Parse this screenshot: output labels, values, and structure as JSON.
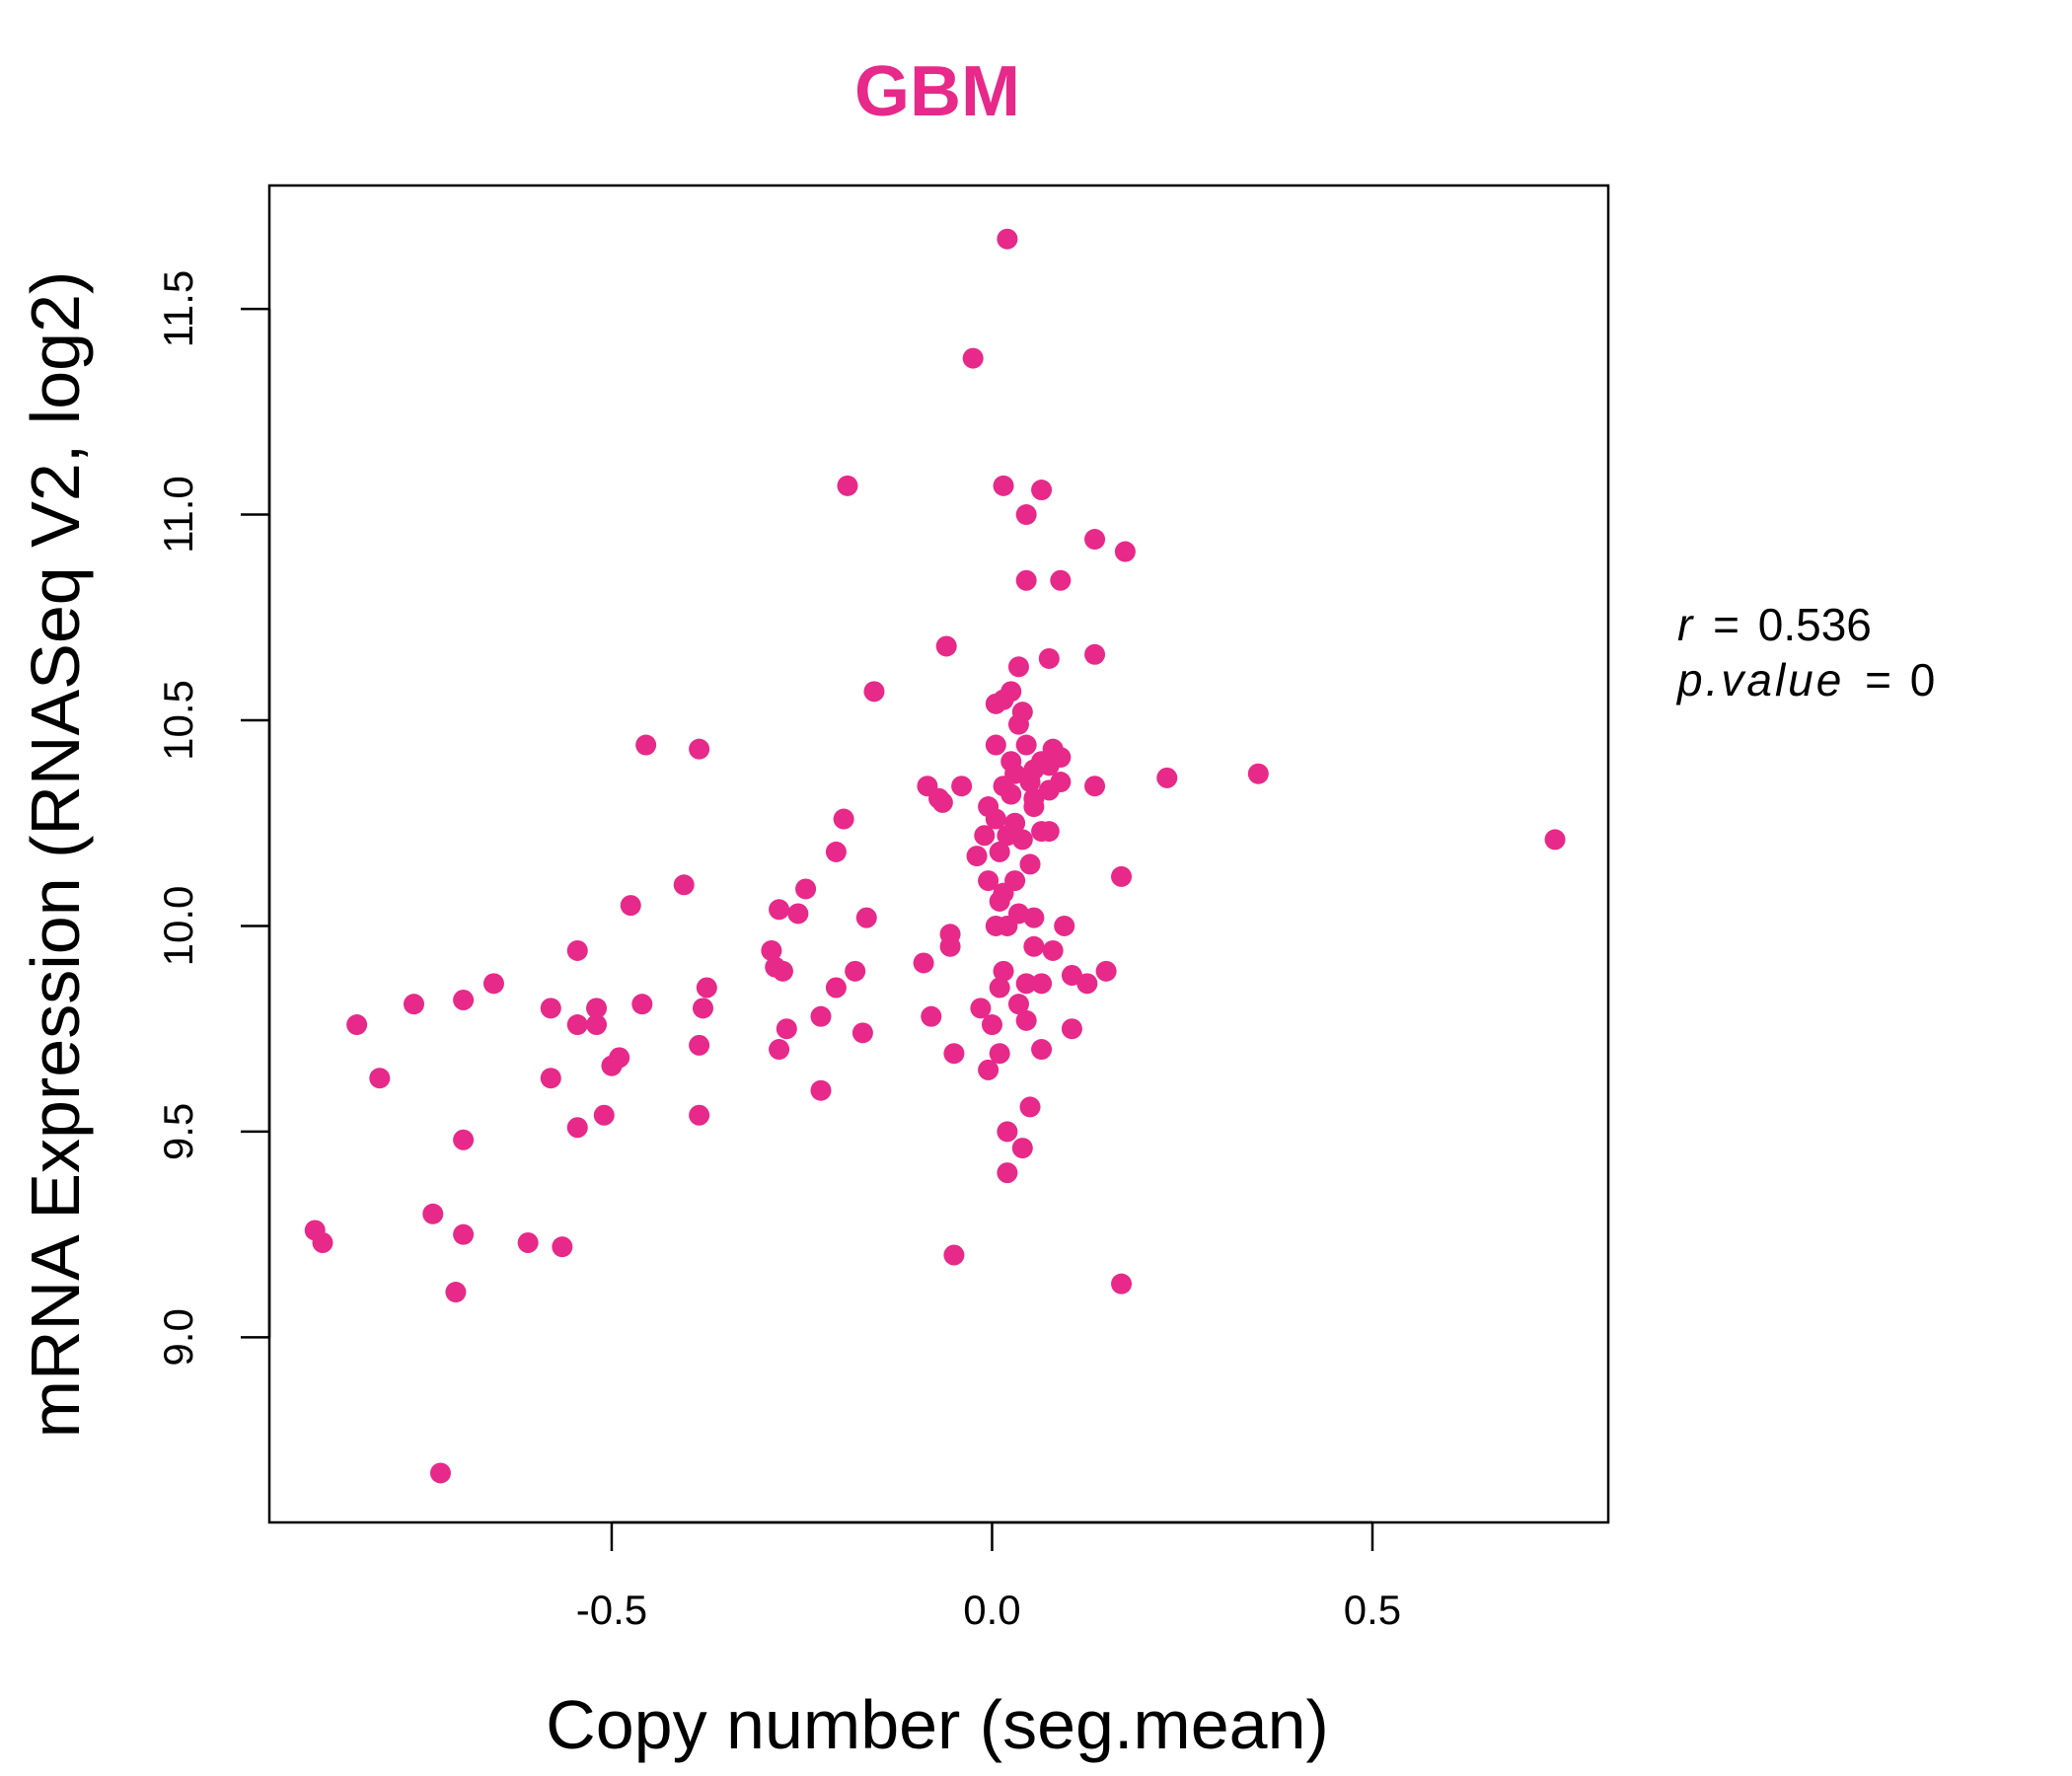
{
  "chart_data": {
    "type": "scatter",
    "title": "GBM",
    "xlabel": "Copy number (seg.mean)",
    "ylabel": "mRNA Expression (RNASeq V2, log2)",
    "xlim": [
      -0.95,
      0.81
    ],
    "ylim": [
      8.55,
      11.8
    ],
    "x_ticks": [
      -0.5,
      0.0,
      0.5
    ],
    "x_tick_labels": [
      "-0.5",
      "0.0",
      "0.5"
    ],
    "y_ticks": [
      9.0,
      9.5,
      10.0,
      10.5,
      11.0,
      11.5
    ],
    "y_tick_labels": [
      "9.0",
      "9.5",
      "10.0",
      "10.5",
      "11.0",
      "11.5"
    ],
    "point_color": "#E7298A",
    "grid": false,
    "stats": {
      "r_label": "r",
      "r_value": "0.536",
      "p_label": "p.value",
      "p_value": "0"
    },
    "points": [
      [
        0.02,
        11.67
      ],
      [
        -0.025,
        11.38
      ],
      [
        -0.19,
        11.07
      ],
      [
        0.015,
        11.07
      ],
      [
        0.065,
        11.06
      ],
      [
        0.045,
        11.0
      ],
      [
        0.135,
        10.94
      ],
      [
        0.175,
        10.91
      ],
      [
        0.045,
        10.84
      ],
      [
        0.09,
        10.84
      ],
      [
        -0.06,
        10.68
      ],
      [
        0.135,
        10.66
      ],
      [
        0.075,
        10.65
      ],
      [
        0.035,
        10.63
      ],
      [
        -0.155,
        10.57
      ],
      [
        0.025,
        10.57
      ],
      [
        0.015,
        10.55
      ],
      [
        0.005,
        10.54
      ],
      [
        0.04,
        10.52
      ],
      [
        0.035,
        10.49
      ],
      [
        -0.455,
        10.44
      ],
      [
        -0.385,
        10.43
      ],
      [
        0.005,
        10.44
      ],
      [
        0.045,
        10.44
      ],
      [
        0.08,
        10.43
      ],
      [
        0.09,
        10.41
      ],
      [
        0.065,
        10.4
      ],
      [
        0.025,
        10.4
      ],
      [
        0.055,
        10.38
      ],
      [
        0.075,
        10.39
      ],
      [
        0.03,
        10.37
      ],
      [
        0.23,
        10.36
      ],
      [
        0.35,
        10.37
      ],
      [
        -0.085,
        10.34
      ],
      [
        -0.04,
        10.34
      ],
      [
        0.015,
        10.34
      ],
      [
        0.05,
        10.35
      ],
      [
        0.09,
        10.35
      ],
      [
        0.135,
        10.34
      ],
      [
        -0.07,
        10.31
      ],
      [
        -0.065,
        10.3
      ],
      [
        0.025,
        10.32
      ],
      [
        0.055,
        10.31
      ],
      [
        0.075,
        10.33
      ],
      [
        -0.005,
        10.29
      ],
      [
        0.055,
        10.29
      ],
      [
        -0.195,
        10.26
      ],
      [
        0.005,
        10.26
      ],
      [
        0.03,
        10.25
      ],
      [
        0.065,
        10.23
      ],
      [
        0.075,
        10.23
      ],
      [
        -0.01,
        10.22
      ],
      [
        0.02,
        10.22
      ],
      [
        0.04,
        10.21
      ],
      [
        0.74,
        10.21
      ],
      [
        -0.205,
        10.18
      ],
      [
        -0.02,
        10.17
      ],
      [
        0.01,
        10.18
      ],
      [
        0.05,
        10.15
      ],
      [
        0.17,
        10.12
      ],
      [
        -0.005,
        10.11
      ],
      [
        0.03,
        10.11
      ],
      [
        0.015,
        10.08
      ],
      [
        -0.405,
        10.1
      ],
      [
        -0.245,
        10.09
      ],
      [
        0.01,
        10.06
      ],
      [
        -0.475,
        10.05
      ],
      [
        -0.28,
        10.04
      ],
      [
        -0.255,
        10.03
      ],
      [
        -0.165,
        10.02
      ],
      [
        0.035,
        10.03
      ],
      [
        0.055,
        10.02
      ],
      [
        0.005,
        10.0
      ],
      [
        0.02,
        10.0
      ],
      [
        0.095,
        10.0
      ],
      [
        -0.055,
        9.98
      ],
      [
        -0.055,
        9.95
      ],
      [
        0.055,
        9.95
      ],
      [
        0.08,
        9.94
      ],
      [
        -0.29,
        9.94
      ],
      [
        -0.545,
        9.94
      ],
      [
        -0.285,
        9.9
      ],
      [
        -0.275,
        9.89
      ],
      [
        -0.18,
        9.89
      ],
      [
        -0.09,
        9.91
      ],
      [
        0.015,
        9.89
      ],
      [
        0.105,
        9.88
      ],
      [
        0.15,
        9.89
      ],
      [
        -0.205,
        9.85
      ],
      [
        -0.375,
        9.85
      ],
      [
        -0.655,
        9.86
      ],
      [
        0.01,
        9.85
      ],
      [
        0.045,
        9.86
      ],
      [
        0.065,
        9.86
      ],
      [
        0.125,
        9.86
      ],
      [
        -0.695,
        9.82
      ],
      [
        -0.76,
        9.81
      ],
      [
        -0.46,
        9.81
      ],
      [
        -0.58,
        9.8
      ],
      [
        -0.52,
        9.8
      ],
      [
        -0.38,
        9.8
      ],
      [
        -0.015,
        9.8
      ],
      [
        0.035,
        9.81
      ],
      [
        -0.08,
        9.78
      ],
      [
        -0.225,
        9.78
      ],
      [
        -0.545,
        9.76
      ],
      [
        -0.52,
        9.76
      ],
      [
        -0.835,
        9.76
      ],
      [
        -0.27,
        9.75
      ],
      [
        0.0,
        9.76
      ],
      [
        0.045,
        9.77
      ],
      [
        0.105,
        9.75
      ],
      [
        -0.17,
        9.74
      ],
      [
        -0.385,
        9.71
      ],
      [
        -0.28,
        9.7
      ],
      [
        0.065,
        9.7
      ],
      [
        -0.05,
        9.69
      ],
      [
        0.01,
        9.69
      ],
      [
        -0.49,
        9.68
      ],
      [
        -0.5,
        9.66
      ],
      [
        -0.005,
        9.65
      ],
      [
        -0.805,
        9.63
      ],
      [
        -0.58,
        9.63
      ],
      [
        -0.225,
        9.6
      ],
      [
        0.05,
        9.56
      ],
      [
        -0.385,
        9.54
      ],
      [
        -0.51,
        9.54
      ],
      [
        -0.545,
        9.51
      ],
      [
        0.02,
        9.5
      ],
      [
        -0.695,
        9.48
      ],
      [
        0.04,
        9.46
      ],
      [
        0.02,
        9.4
      ],
      [
        -0.735,
        9.3
      ],
      [
        -0.89,
        9.26
      ],
      [
        -0.88,
        9.23
      ],
      [
        -0.695,
        9.25
      ],
      [
        -0.61,
        9.23
      ],
      [
        -0.565,
        9.22
      ],
      [
        -0.05,
        9.2
      ],
      [
        0.17,
        9.13
      ],
      [
        -0.705,
        9.11
      ],
      [
        -0.725,
        8.67
      ]
    ]
  }
}
